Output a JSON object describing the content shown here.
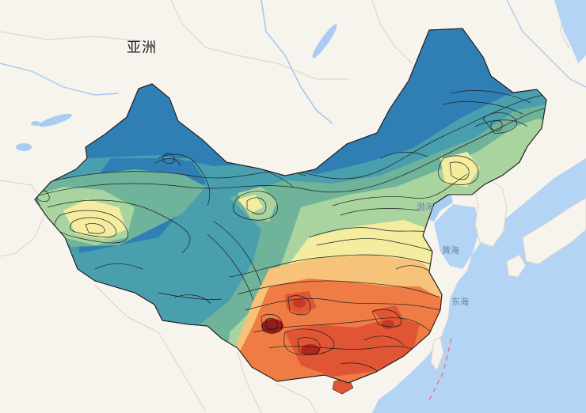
{
  "map": {
    "continent_label": "亚洲",
    "sea_labels": {
      "bohai": "渤海",
      "yellow_sea": "黄海",
      "east_sea": "东海"
    },
    "colors": {
      "land": "#f7f4ee",
      "water": "#a9cdf2",
      "ocean": "#b4d4f5",
      "river": "#a3c9f0",
      "border": "#d7d2c9",
      "contour": "#1e1e1e",
      "dark_blue": "#2f7fb5",
      "teal": "#4a9fae",
      "mid_green": "#6fb39a",
      "light_green": "#a9d49f",
      "yellow": "#f4eda0",
      "light_orange": "#f7c27a",
      "orange": "#f07c45",
      "red_orange": "#e05533",
      "dark_red": "#9b1b1b"
    }
  }
}
